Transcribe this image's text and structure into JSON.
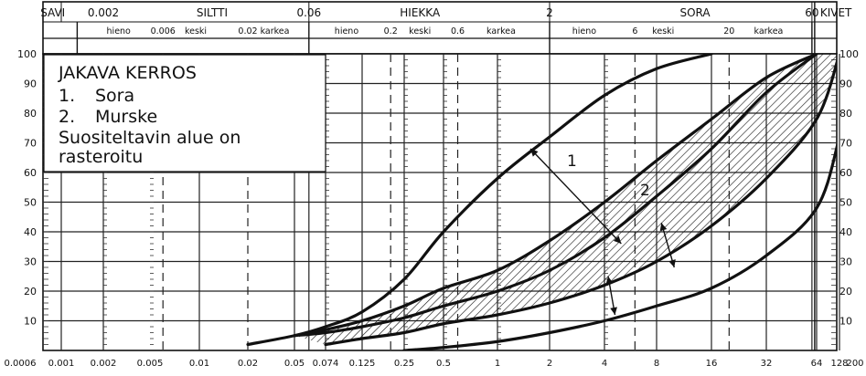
{
  "chart_data": {
    "type": "line",
    "x_scale": "log",
    "xlim": [
      0.0006,
      200
    ],
    "ylim": [
      0,
      100
    ],
    "grid": true,
    "x_tick_labels": [
      "0.0006",
      "0.001",
      "0.002",
      "0.005",
      "0.01",
      "0.02",
      "0.05",
      "0.074",
      "0.125",
      "0.25",
      "0.5",
      "1",
      "2",
      "4",
      "8",
      "16",
      "32",
      "64",
      "128",
      "200"
    ],
    "y_tick_labels": [
      "10",
      "20",
      "30",
      "40",
      "50",
      "60",
      "70",
      "80",
      "90",
      "100"
    ],
    "fractions_top": [
      "SAVI",
      "0.002",
      "SILTTI",
      "0.06",
      "HIEKKA",
      "2",
      "SORA",
      "60",
      "KIVET"
    ],
    "fractions_sub": [
      "hieno",
      "0.006",
      "keski",
      "0.02",
      "karkea",
      "hieno",
      "0.2",
      "keski",
      "0.6",
      "karkea",
      "hieno",
      "6",
      "keski",
      "20",
      "karkea"
    ],
    "legend": {
      "title": "JAKAVA KERROS",
      "item1_num": "1.",
      "item1_text": "Sora",
      "item2_num": "2.",
      "item2_text": "Murske",
      "note_line1": "Suositeltavin alue on",
      "note_line2": "rasteroitu"
    },
    "curve_labels": [
      "1",
      "2"
    ],
    "series": [
      {
        "x": [
          0.02,
          0.05,
          0.074,
          0.125,
          0.25,
          0.5,
          1,
          2,
          4,
          8,
          16
        ],
        "values": [
          2,
          5,
          8,
          13,
          24,
          40,
          58,
          72,
          86,
          95,
          100
        ]
      },
      {
        "x": [
          0.05,
          0.074,
          0.125,
          0.25,
          0.5,
          1,
          2,
          4,
          8,
          16,
          32,
          64
        ],
        "values": [
          5,
          7,
          10,
          15,
          21,
          27,
          37,
          50,
          64,
          78,
          92,
          100
        ]
      },
      {
        "x": [
          0.05,
          0.074,
          0.125,
          0.25,
          0.5,
          1,
          2,
          4,
          8,
          16,
          32,
          64
        ],
        "values": [
          5,
          6,
          8,
          11,
          15,
          20,
          27,
          38,
          52,
          68,
          87,
          100
        ]
      },
      {
        "x": [
          0.074,
          0.125,
          0.25,
          0.5,
          1,
          2,
          4,
          8,
          16,
          32,
          64,
          128
        ],
        "values": [
          2,
          4,
          6,
          9,
          12,
          16,
          22,
          30,
          42,
          58,
          78,
          100
        ]
      },
      {
        "x": [
          0.25,
          0.5,
          1,
          2,
          4,
          8,
          16,
          32,
          64,
          128,
          200
        ],
        "values": [
          0,
          1,
          3,
          6,
          10,
          15,
          21,
          32,
          48,
          72,
          96
        ]
      }
    ],
    "shaded_band": {
      "upper_series": 1,
      "lower_series": 3
    }
  }
}
